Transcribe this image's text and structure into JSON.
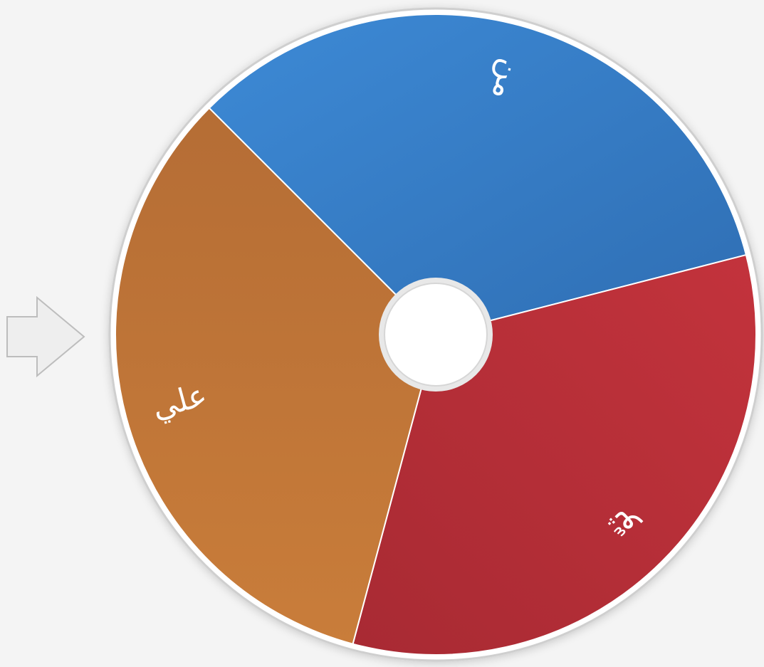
{
  "wheel": {
    "segments": [
      {
        "label": "من"
      },
      {
        "label": "ثوّ"
      },
      {
        "label": "علي"
      }
    ]
  }
}
